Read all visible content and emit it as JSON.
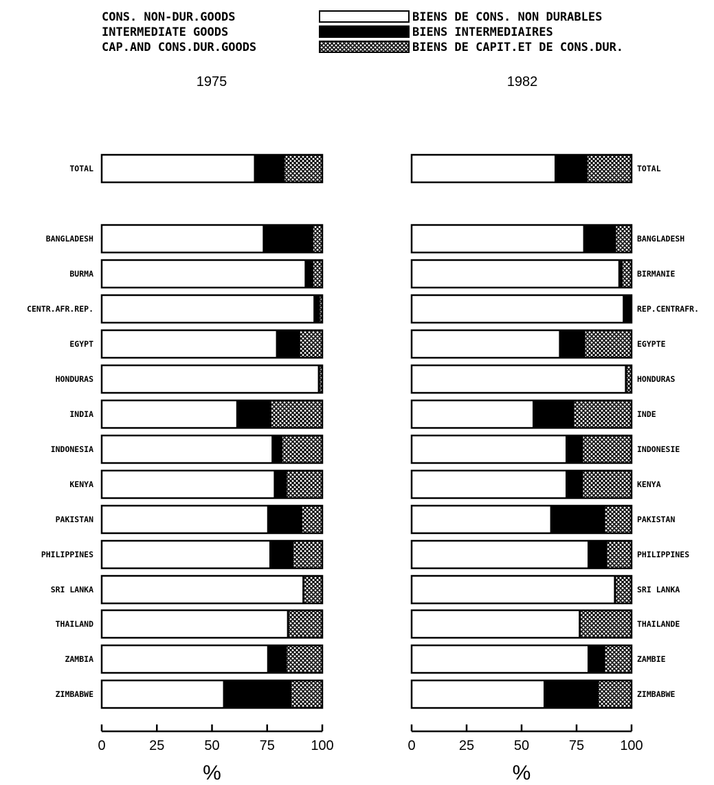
{
  "legend": {
    "items": [
      {
        "en": "CONS. NON-DUR.GOODS",
        "fr": "BIENS DE CONS. NON DURABLES",
        "pattern": "white"
      },
      {
        "en": "INTERMEDIATE GOODS",
        "fr": "BIENS INTERMEDIAIRES",
        "pattern": "black"
      },
      {
        "en": "CAP.AND CONS.DUR.GOODS",
        "fr": "BIENS DE CAPIT.ET DE CONS.DUR.",
        "pattern": "crosshatch"
      }
    ]
  },
  "colors": {
    "ink": "#000000",
    "paper": "#ffffff"
  },
  "chart_data": [
    {
      "type": "bar",
      "stacked": true,
      "orientation": "horizontal",
      "title": "1975",
      "xlabel": "%",
      "xlim": [
        0,
        100
      ],
      "xticks": [
        "0",
        "25",
        "50",
        "75",
        "100"
      ],
      "categories": [
        "TOTAL",
        "BANGLADESH",
        "BURMA",
        "CENTR.AFR.REP.",
        "EGYPT",
        "HONDURAS",
        "INDIA",
        "INDONESIA",
        "KENYA",
        "PAKISTAN",
        "PHILIPPINES",
        "SRI LANKA",
        "THAILAND",
        "ZAMBIA",
        "ZIMBABWE"
      ],
      "series": [
        {
          "name": "CONS. NON-DUR.GOODS",
          "values": [
            69,
            73,
            92,
            96,
            79,
            98,
            61,
            77,
            78,
            75,
            76,
            91,
            84,
            75,
            55
          ]
        },
        {
          "name": "INTERMEDIATE GOODS",
          "values": [
            14,
            23,
            4,
            3,
            11,
            1,
            16,
            5,
            6,
            16,
            11,
            1,
            1,
            9,
            31
          ]
        },
        {
          "name": "CAP.AND CONS.DUR.GOODS",
          "values": [
            17,
            4,
            4,
            1,
            10,
            1,
            23,
            18,
            16,
            9,
            13,
            8,
            15,
            16,
            14
          ]
        }
      ]
    },
    {
      "type": "bar",
      "stacked": true,
      "orientation": "horizontal",
      "title": "1982",
      "xlabel": "%",
      "xlim": [
        0,
        100
      ],
      "xticks": [
        "0",
        "25",
        "50",
        "75",
        "100"
      ],
      "categories": [
        "TOTAL",
        "BANGLADESH",
        "BIRMANIE",
        "REP.CENTRAFR.",
        "EGYPTE",
        "HONDURAS",
        "INDE",
        "INDONESIE",
        "KENYA",
        "PAKISTAN",
        "PHILIPPINES",
        "SRI LANKA",
        "THAILANDE",
        "ZAMBIE",
        "ZIMBABWE"
      ],
      "series": [
        {
          "name": "CONS. NON-DUR.GOODS",
          "values": [
            65,
            78,
            94,
            96,
            67,
            97,
            55,
            70,
            70,
            63,
            80,
            92,
            76,
            80,
            60
          ]
        },
        {
          "name": "INTERMEDIATE GOODS",
          "values": [
            15,
            15,
            2,
            4,
            12,
            1,
            19,
            8,
            8,
            25,
            9,
            1,
            1,
            8,
            25
          ]
        },
        {
          "name": "CAP.AND CONS.DUR.GOODS",
          "values": [
            20,
            7,
            4,
            0,
            21,
            2,
            26,
            22,
            22,
            12,
            11,
            7,
            23,
            12,
            15
          ]
        }
      ]
    }
  ]
}
